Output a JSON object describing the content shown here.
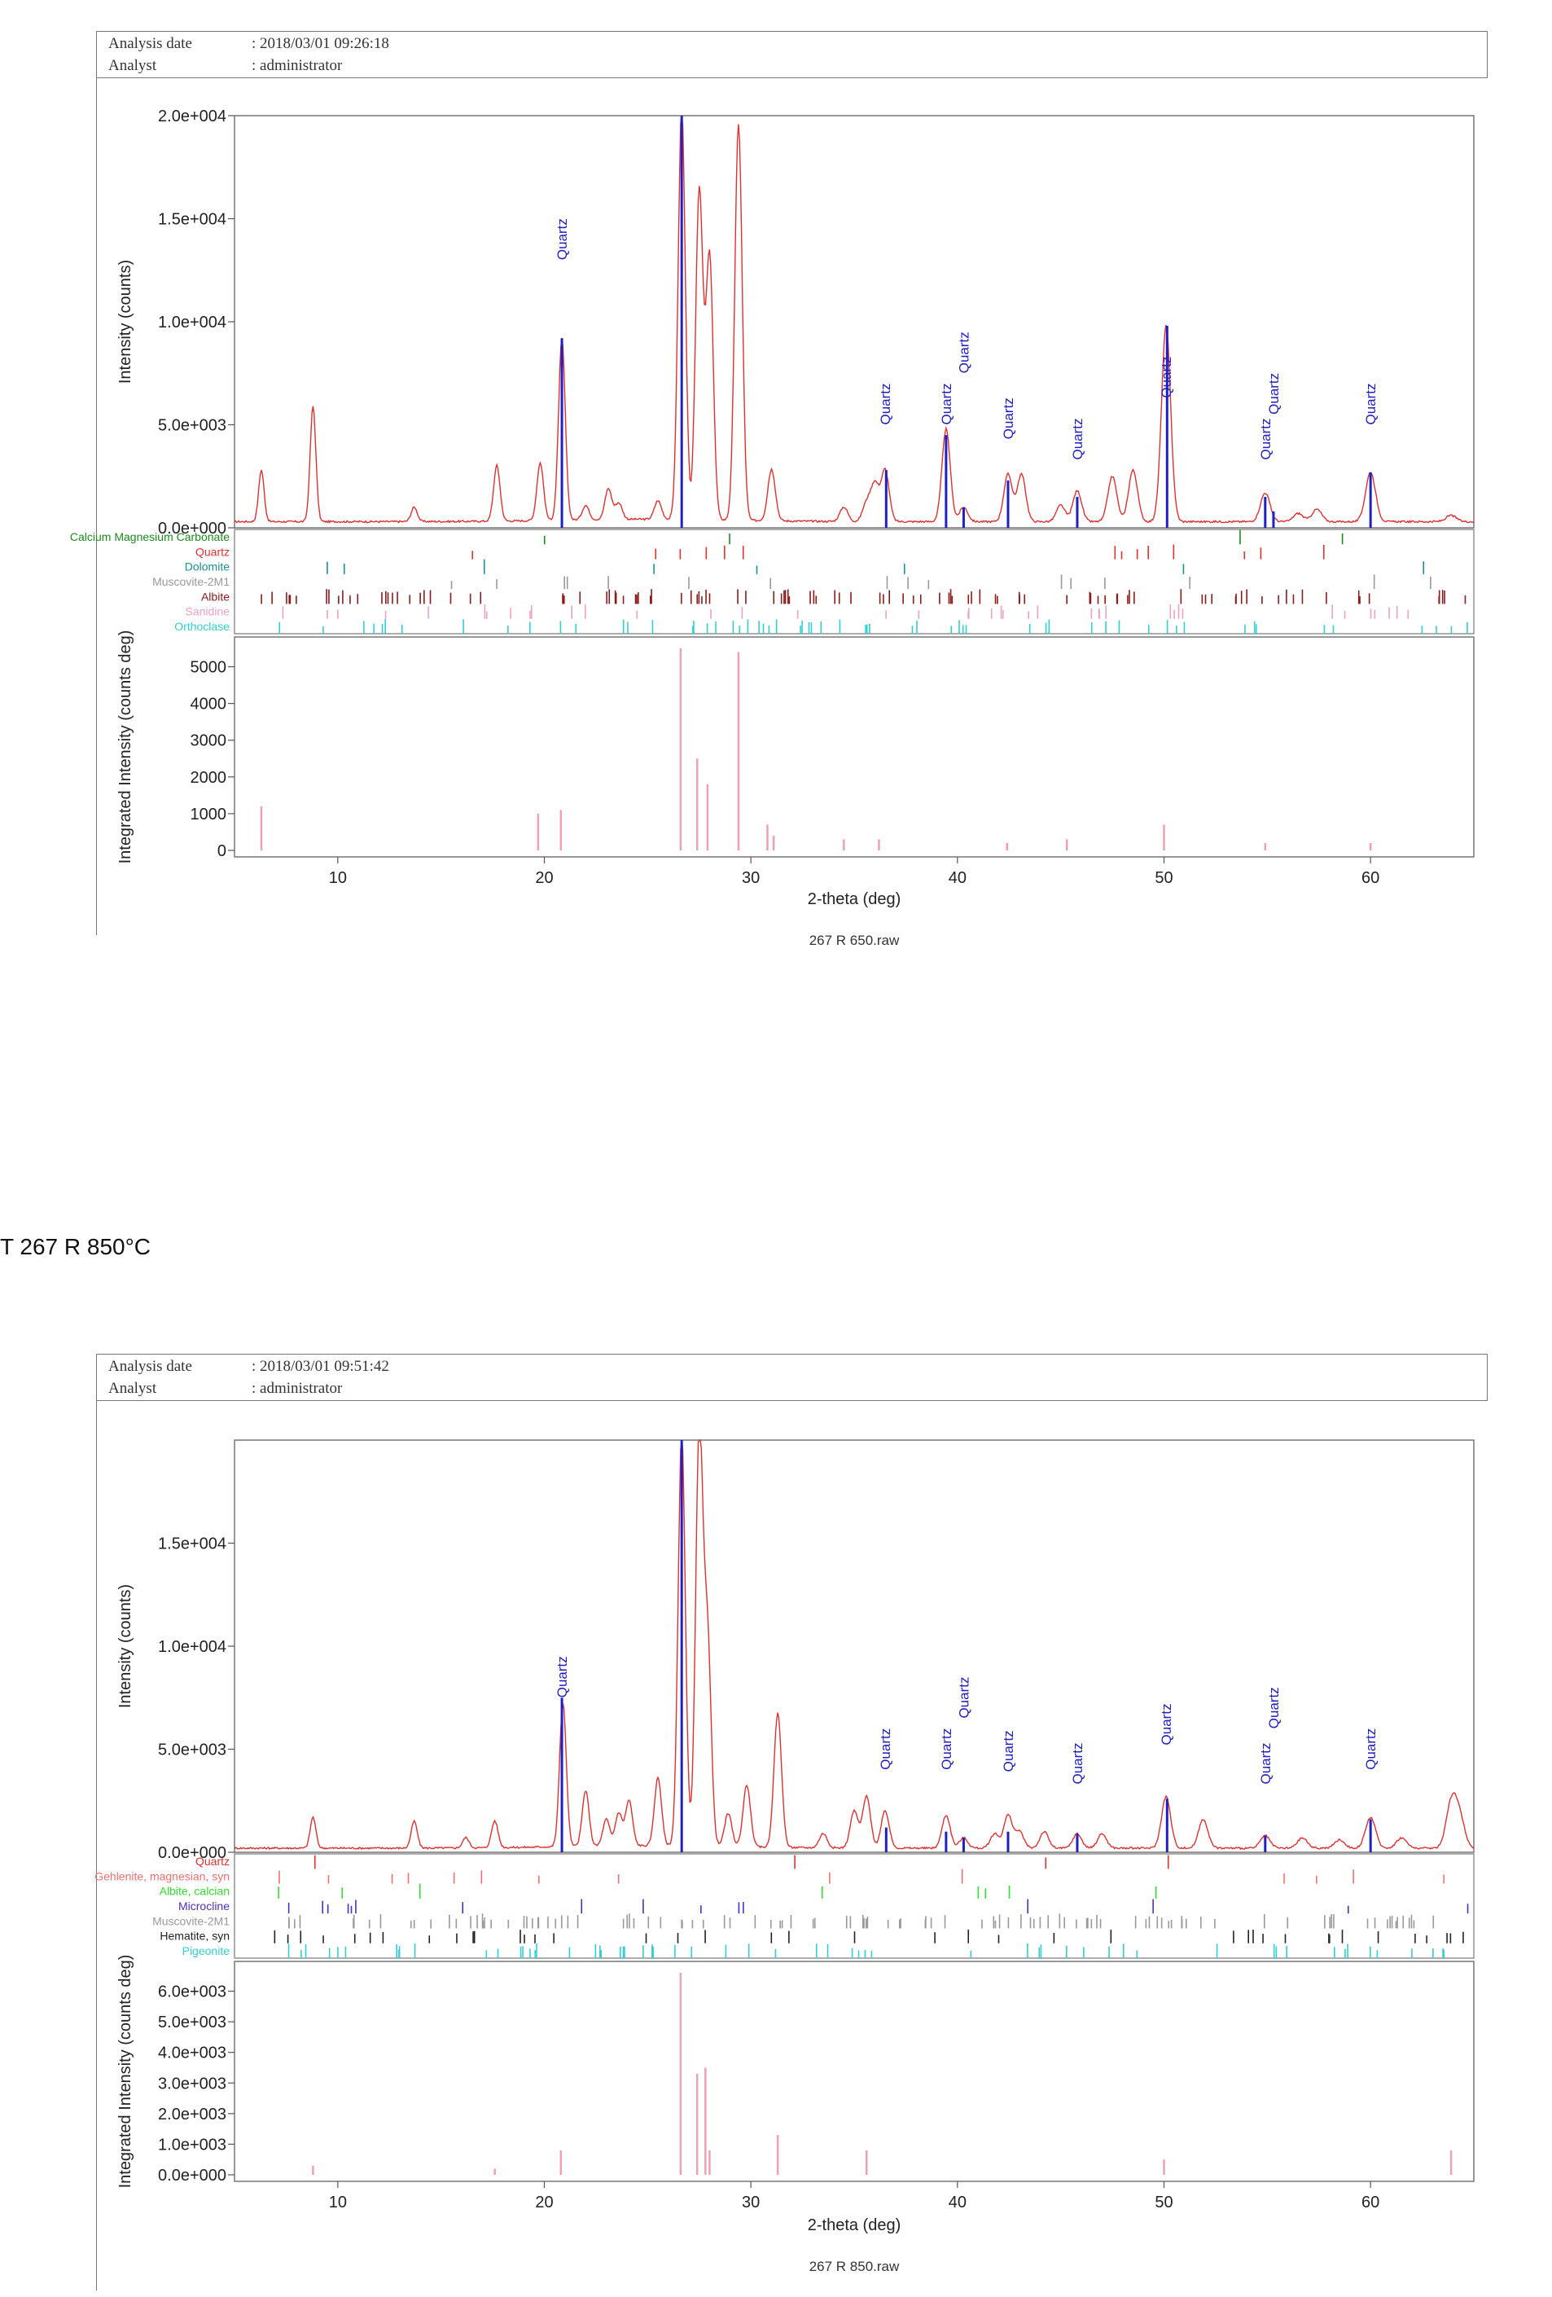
{
  "section_label": "T 267 R 850°C",
  "reports": [
    {
      "header": {
        "analysis_date_key": "Analysis date",
        "analysis_date_value": ": 2018/03/01 09:26:18",
        "analyst_key": "Analyst",
        "analyst_value": ": administrator"
      },
      "filename": "267 R 650.raw",
      "phases": [
        {
          "name": "Calcium Magnesium Carbonate",
          "color": "#1a8c1a"
        },
        {
          "name": "Quartz",
          "color": "#e03030"
        },
        {
          "name": "Dolomite",
          "color": "#1a9090"
        },
        {
          "name": "Muscovite-2M1",
          "color": "#999999"
        },
        {
          "name": "Albite",
          "color": "#8b1a1a"
        },
        {
          "name": "Sanidine",
          "color": "#f0a0c0"
        },
        {
          "name": "Orthoclase",
          "color": "#30d0d0"
        }
      ]
    },
    {
      "header": {
        "analysis_date_key": "Analysis date",
        "analysis_date_value": ": 2018/03/01 09:51:42",
        "analyst_key": "Analyst",
        "analyst_value": ": administrator"
      },
      "filename": "267 R 850.raw",
      "phases": [
        {
          "name": "Quartz",
          "color": "#e03030"
        },
        {
          "name": "Gehlenite, magnesian, syn",
          "color": "#f07070"
        },
        {
          "name": "Albite, calcian",
          "color": "#30e030"
        },
        {
          "name": "Microcline",
          "color": "#4a30c0"
        },
        {
          "name": "Muscovite-2M1",
          "color": "#999999"
        },
        {
          "name": "Hematite, syn",
          "color": "#222222"
        },
        {
          "name": "Pigeonite",
          "color": "#30d0d0"
        }
      ]
    }
  ],
  "chart_data": [
    {
      "type": "line",
      "title": "",
      "xlabel": "2-theta (deg)",
      "ylabel": "Intensity (counts)",
      "xlim": [
        5,
        65
      ],
      "ylim": [
        0,
        20000
      ],
      "xticks": [
        10,
        20,
        30,
        40,
        50,
        60
      ],
      "yticks": [
        "0.0e+000",
        "5.0e+003",
        "1.0e+004",
        "1.5e+004",
        "2.0e+004"
      ],
      "ytick_values": [
        0,
        5000,
        10000,
        15000,
        20000
      ],
      "series": [
        {
          "color": "#e03030",
          "peaks": [
            [
              6.3,
              2500
            ],
            [
              8.8,
              5600
            ],
            [
              13.7,
              700
            ],
            [
              17.7,
              2700
            ],
            [
              19.8,
              2800
            ],
            [
              20.85,
              8800
            ],
            [
              22.0,
              700
            ],
            [
              23.1,
              1500
            ],
            [
              23.6,
              800
            ],
            [
              25.5,
              900
            ],
            [
              26.65,
              20000
            ],
            [
              27.5,
              16000
            ],
            [
              28.0,
              12800
            ],
            [
              29.4,
              19200
            ],
            [
              31.0,
              2500
            ],
            [
              34.5,
              700
            ],
            [
              35.6,
              900
            ],
            [
              36.0,
              1800
            ],
            [
              36.5,
              2500
            ],
            [
              39.45,
              4500
            ],
            [
              40.3,
              700
            ],
            [
              42.45,
              2300
            ],
            [
              43.1,
              2300
            ],
            [
              45.0,
              800
            ],
            [
              45.8,
              1500
            ],
            [
              47.5,
              2200
            ],
            [
              48.5,
              2500
            ],
            [
              50.1,
              9500
            ],
            [
              54.9,
              1400
            ],
            [
              56.5,
              400
            ],
            [
              57.4,
              600
            ],
            [
              60.0,
              2400
            ],
            [
              63.9,
              300
            ]
          ],
          "baseline": 300
        },
        {
          "color": "#2020c0",
          "name": "Quartz",
          "sticks": [
            [
              20.85,
              9200
            ],
            [
              26.65,
              20000
            ],
            [
              36.55,
              2800
            ],
            [
              39.45,
              4500
            ],
            [
              40.3,
              1000
            ],
            [
              42.45,
              2300
            ],
            [
              45.8,
              1500
            ],
            [
              50.15,
              9800
            ],
            [
              54.9,
              1500
            ],
            [
              55.3,
              800
            ],
            [
              60.0,
              2700
            ]
          ]
        }
      ],
      "annotations": [
        {
          "text": "Quartz",
          "x": 20.85,
          "y": 13000
        },
        {
          "text": "Quartz",
          "x": 36.5,
          "y": 5000
        },
        {
          "text": "Quartz",
          "x": 39.45,
          "y": 5000
        },
        {
          "text": "Quartz",
          "x": 40.3,
          "y": 7500
        },
        {
          "text": "Quartz",
          "x": 42.45,
          "y": 4300
        },
        {
          "text": "Quartz",
          "x": 45.8,
          "y": 3300
        },
        {
          "text": "Quartz",
          "x": 50.1,
          "y": 6300
        },
        {
          "text": "Quartz",
          "x": 54.9,
          "y": 3300
        },
        {
          "text": "Quartz",
          "x": 55.3,
          "y": 5500
        },
        {
          "text": "Quartz",
          "x": 60.0,
          "y": 5000
        }
      ],
      "integrated": {
        "ylabel": "Integrated Intensity (counts deg)",
        "ylim": [
          0,
          5500
        ],
        "yticks": [
          "0",
          "1000",
          "2000",
          "3000",
          "4000",
          "5000"
        ],
        "ytick_values": [
          0,
          1000,
          2000,
          3000,
          4000,
          5000
        ],
        "bars": [
          [
            6.3,
            1200
          ],
          [
            19.7,
            1000
          ],
          [
            20.8,
            1100
          ],
          [
            26.6,
            5500
          ],
          [
            27.4,
            2500
          ],
          [
            27.9,
            1800
          ],
          [
            29.4,
            5400
          ],
          [
            30.8,
            700
          ],
          [
            31.1,
            400
          ],
          [
            34.5,
            300
          ],
          [
            36.2,
            300
          ],
          [
            42.4,
            200
          ],
          [
            45.3,
            300
          ],
          [
            50.0,
            700
          ],
          [
            54.9,
            200
          ],
          [
            60.0,
            200
          ]
        ]
      }
    },
    {
      "type": "line",
      "title": "",
      "xlabel": "2-theta (deg)",
      "ylabel": "Intensity (counts)",
      "xlim": [
        5,
        65
      ],
      "ylim": [
        0,
        20000
      ],
      "xticks": [
        10,
        20,
        30,
        40,
        50,
        60
      ],
      "yticks": [
        "0.0e+000",
        "5.0e+003",
        "1.0e+004",
        "1.5e+004"
      ],
      "ytick_values": [
        0,
        5000,
        10000,
        15000
      ],
      "series": [
        {
          "color": "#e03030",
          "peaks": [
            [
              8.8,
              1500
            ],
            [
              13.7,
              1300
            ],
            [
              16.2,
              500
            ],
            [
              17.6,
              1300
            ],
            [
              20.9,
              7000
            ],
            [
              22.0,
              2700
            ],
            [
              23.0,
              1300
            ],
            [
              23.6,
              1600
            ],
            [
              24.1,
              2200
            ],
            [
              25.5,
              3300
            ],
            [
              26.65,
              20000
            ],
            [
              27.5,
              20000
            ],
            [
              27.9,
              10000
            ],
            [
              28.9,
              1600
            ],
            [
              29.8,
              3000
            ],
            [
              31.3,
              6500
            ],
            [
              33.5,
              700
            ],
            [
              35.0,
              1800
            ],
            [
              35.6,
              2500
            ],
            [
              36.5,
              1800
            ],
            [
              39.45,
              1600
            ],
            [
              40.3,
              500
            ],
            [
              41.8,
              700
            ],
            [
              42.45,
              1600
            ],
            [
              43.0,
              800
            ],
            [
              44.2,
              800
            ],
            [
              45.8,
              700
            ],
            [
              47.0,
              700
            ],
            [
              50.1,
              2500
            ],
            [
              51.9,
              1400
            ],
            [
              54.9,
              600
            ],
            [
              56.7,
              500
            ],
            [
              58.5,
              400
            ],
            [
              60.0,
              1500
            ],
            [
              61.5,
              500
            ],
            [
              63.9,
              2100
            ],
            [
              64.3,
              1500
            ]
          ],
          "baseline": 200
        },
        {
          "color": "#2020c0",
          "name": "Quartz",
          "sticks": [
            [
              20.85,
              7500
            ],
            [
              26.65,
              20000
            ],
            [
              36.55,
              1200
            ],
            [
              39.45,
              1000
            ],
            [
              40.3,
              700
            ],
            [
              42.45,
              1000
            ],
            [
              45.8,
              900
            ],
            [
              50.15,
              2600
            ],
            [
              54.9,
              800
            ],
            [
              60.0,
              1600
            ]
          ]
        }
      ],
      "annotations": [
        {
          "text": "Quartz",
          "x": 20.85,
          "y": 7500
        },
        {
          "text": "Quartz",
          "x": 36.5,
          "y": 4000
        },
        {
          "text": "Quartz",
          "x": 39.45,
          "y": 4000
        },
        {
          "text": "Quartz",
          "x": 40.3,
          "y": 6500
        },
        {
          "text": "Quartz",
          "x": 42.45,
          "y": 3900
        },
        {
          "text": "Quartz",
          "x": 45.8,
          "y": 3300
        },
        {
          "text": "Quartz",
          "x": 50.1,
          "y": 5200
        },
        {
          "text": "Quartz",
          "x": 54.9,
          "y": 3300
        },
        {
          "text": "Quartz",
          "x": 55.3,
          "y": 6000
        },
        {
          "text": "Quartz",
          "x": 60.0,
          "y": 4000
        }
      ],
      "integrated": {
        "ylabel": "Integrated Intensity (counts deg)",
        "ylim": [
          0,
          6600
        ],
        "yticks": [
          "0.0e+000",
          "1.0e+003",
          "2.0e+003",
          "3.0e+003",
          "4.0e+003",
          "5.0e+003",
          "6.0e+003"
        ],
        "ytick_values": [
          0,
          1000,
          2000,
          3000,
          4000,
          5000,
          6000
        ],
        "bars": [
          [
            8.8,
            300
          ],
          [
            17.6,
            200
          ],
          [
            20.8,
            800
          ],
          [
            26.6,
            6600
          ],
          [
            27.4,
            3300
          ],
          [
            27.8,
            3500
          ],
          [
            28.0,
            800
          ],
          [
            31.3,
            1300
          ],
          [
            35.6,
            800
          ],
          [
            50.0,
            500
          ],
          [
            63.9,
            800
          ]
        ]
      }
    }
  ]
}
